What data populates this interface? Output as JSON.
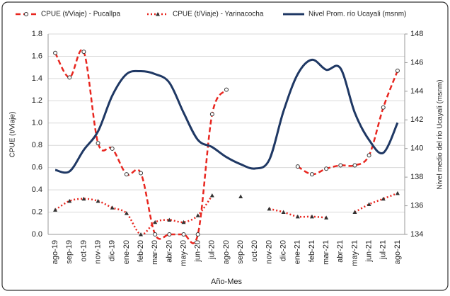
{
  "chart_data": {
    "type": "line",
    "categories": [
      "ago-19",
      "sep-19",
      "oct-19",
      "nov-19",
      "dic-19",
      "ene-20",
      "feb-20",
      "mar-20",
      "abr-20",
      "may-20",
      "jun-20",
      "jul-20",
      "ago-20",
      "sep-20",
      "oct-20",
      "nov-20",
      "dic-20",
      "ene-21",
      "feb-21",
      "mar-21",
      "abr-21",
      "may-21",
      "jun-21",
      "jul-21",
      "ago-21"
    ],
    "x_label": "Año-Mes",
    "y_label": "CPUE (t/Viaje)",
    "y2_label": "Nivel medio del río Ucayali (msnm)",
    "ylim": [
      0,
      1.8
    ],
    "yticks": [
      {
        "value": 0,
        "label": "0.0"
      },
      0.2,
      0.4,
      0.6,
      0.8,
      {
        "value": 1,
        "label": "1.0"
      },
      1.2,
      1.4,
      1.6,
      1.8
    ],
    "y2lim": [
      134,
      148
    ],
    "y2ticks": [
      134,
      136,
      138,
      140,
      142,
      144,
      146,
      148
    ],
    "grid": true,
    "legend": "top",
    "smooth": true,
    "series": [
      {
        "name": "CPUE  (t/Viaje) - Pucallpa",
        "color": "#e8261f",
        "line_style": "dashed",
        "marker": "circle",
        "values": [
          1.63,
          1.41,
          1.64,
          0.82,
          0.77,
          0.54,
          0.55,
          0,
          0,
          0,
          0,
          1.08,
          1.3,
          null,
          null,
          null,
          null,
          0.61,
          0.54,
          0.59,
          0.62,
          0.62,
          0.71,
          1.14,
          1.47
        ]
      },
      {
        "name": "CPUE (t/Viaje) - Yarinacocha",
        "color": "#e8261f",
        "line_style": "dotted",
        "marker": "triangle",
        "values": [
          0.22,
          0.3,
          0.32,
          0.3,
          0.24,
          0.19,
          0,
          0.11,
          0.13,
          0.11,
          0.17,
          0.35,
          null,
          0.34,
          null,
          0.23,
          0.2,
          0.16,
          0.16,
          0.15,
          null,
          0.2,
          0.27,
          0.32,
          0.37
        ]
      },
      {
        "name": "Nivel Prom. río Ucayali  (msnm)",
        "color": "#1f3864",
        "line_style": "solid",
        "marker": "none",
        "axis": "y2",
        "values": [
          138.5,
          138.4,
          139.9,
          141.2,
          143.7,
          145.2,
          145.4,
          145.2,
          144.6,
          142.5,
          140.6,
          140.1,
          139.4,
          138.9,
          138.6,
          139.2,
          142.6,
          145.2,
          146.2,
          145.5,
          145.6,
          142.5,
          140.6,
          139.7,
          141.8
        ]
      }
    ]
  }
}
